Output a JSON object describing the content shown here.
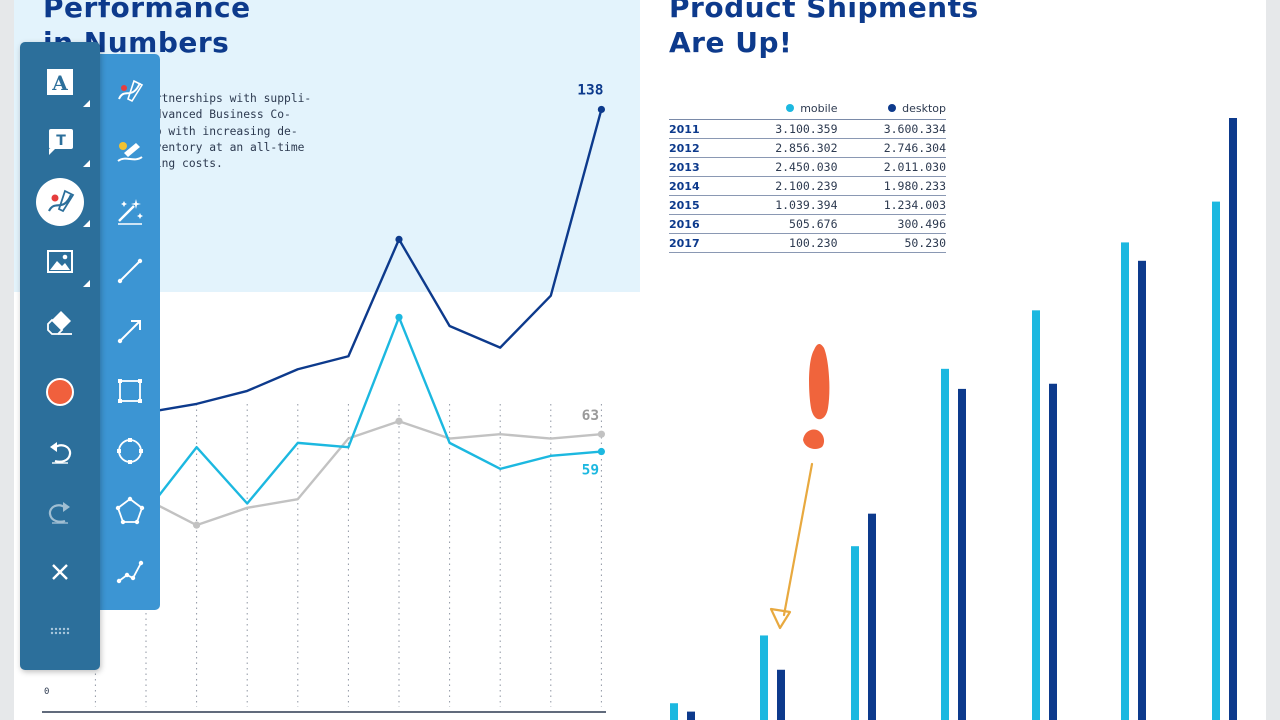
{
  "left": {
    "title_line1": "Performance",
    "title_line2": "in Numbers",
    "intro_lines": [
      "tic partnerships with suppli-",
      "ers, Advanced Business Co-",
      "keep up with increasing de-",
      "ing inventory at an all-time",
      "operating costs."
    ]
  },
  "right": {
    "title_line1": "Product Shipments",
    "title_line2": "Are Up!",
    "table": {
      "headers": [
        "",
        "mobile",
        "desktop"
      ],
      "rows": [
        [
          "2011",
          "3.100.359",
          "3.600.334"
        ],
        [
          "2012",
          "2.856.302",
          "2.746.304"
        ],
        [
          "2013",
          "2.450.030",
          "2.011.030"
        ],
        [
          "2014",
          "2.100.239",
          "1.980.233"
        ],
        [
          "2015",
          "1.039.394",
          "1.234.003"
        ],
        [
          "2016",
          "505.676",
          "300.496"
        ],
        [
          "2017",
          "100.230",
          "50.230"
        ]
      ]
    }
  },
  "colors": {
    "title": "#0d3a8c",
    "navy": "#0d3a8c",
    "cyan": "#1cb8e0",
    "gray": "#c2c2c2",
    "panel": "#e3f3fc",
    "annotation_red": "#f0643c",
    "annotation_arrow": "#e8a93f",
    "toolbar": "#2c6f9b",
    "flyout": "#3c95d3"
  },
  "toolbar": {
    "tools": [
      {
        "icon": "text-icon",
        "active": false
      },
      {
        "icon": "text-box-icon",
        "active": false
      },
      {
        "icon": "pen-icon",
        "active": true
      },
      {
        "icon": "image-icon",
        "active": false
      },
      {
        "icon": "eraser-icon",
        "active": false
      },
      {
        "icon": "record-icon",
        "active": false
      },
      {
        "icon": "undo-icon",
        "active": false
      },
      {
        "icon": "redo-icon",
        "active": false
      },
      {
        "icon": "close-icon",
        "active": false
      },
      {
        "icon": "drag-handle-icon",
        "active": false
      }
    ],
    "flyout": [
      "pen-draw-icon",
      "highlighter-icon",
      "magic-wand-icon",
      "line-icon",
      "arrow-icon",
      "rectangle-icon",
      "ellipse-icon",
      "polygon-icon",
      "polyline-icon"
    ]
  },
  "chart_data": [
    {
      "type": "line",
      "title": "",
      "xlabel": "",
      "ylabel": "",
      "y_tick_labels": [
        "0"
      ],
      "grid": "vertical dotted",
      "x": [
        1,
        2,
        3,
        4,
        5,
        6,
        7,
        8,
        9,
        10
      ],
      "series": [
        {
          "color": "#0d3a8c",
          "values": [
            68,
            70,
            73,
            78,
            81,
            108,
            88,
            83,
            95,
            138
          ],
          "end_label": "138"
        },
        {
          "color": "#c2c2c2",
          "values": [
            48,
            42,
            46,
            48,
            62,
            66,
            62,
            63,
            62,
            63
          ],
          "end_label": "63"
        },
        {
          "color": "#1cb8e0",
          "values": [
            45,
            60,
            47,
            61,
            60,
            90,
            61,
            55,
            58,
            59
          ],
          "end_label": "59"
        }
      ]
    },
    {
      "type": "bar",
      "title": "",
      "categories": [
        "2017",
        "2016",
        "2015",
        "2014",
        "2013",
        "2012",
        "2011"
      ],
      "series": [
        {
          "name": "mobile",
          "color": "#1cb8e0",
          "values": [
            100230,
            505676,
            1039394,
            2100239,
            2450030,
            2856302,
            3100359
          ]
        },
        {
          "name": "desktop",
          "color": "#0d3a8c",
          "values": [
            50230,
            300496,
            1234003,
            1980233,
            2011030,
            2746304,
            3600334
          ]
        }
      ]
    }
  ]
}
